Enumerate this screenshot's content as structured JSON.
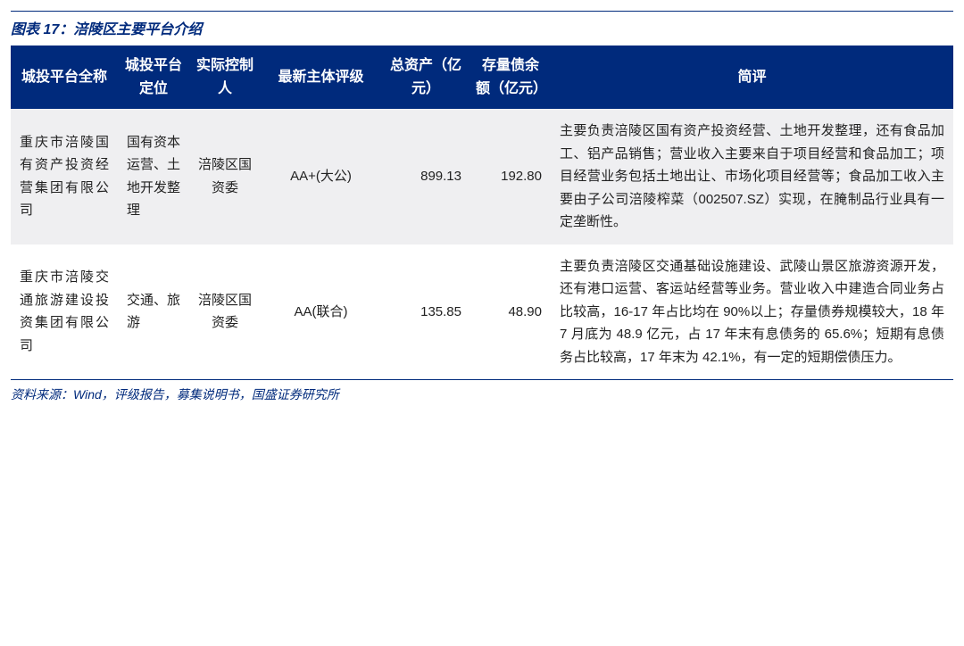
{
  "figure": {
    "label": "图表 17：",
    "title": "涪陵区主要平台介绍"
  },
  "table": {
    "columns": [
      "城投平台全称",
      "城投平台定位",
      "实际控制人",
      "最新主体评级",
      "总资产（亿元）",
      "存量债余额（亿元）",
      "简评"
    ],
    "rows": [
      {
        "name": "重庆市涪陵国有资产投资经营集团有限公司",
        "position": "国有资本运营、土地开发整理",
        "controller": "涪陵区国资委",
        "rating": "AA+(大公)",
        "assets": "899.13",
        "debt": "192.80",
        "comment": "主要负责涪陵区国有资产投资经营、土地开发整理，还有食品加工、铝产品销售；营业收入主要来自于项目经营和食品加工；项目经营业务包括土地出让、市场化项目经营等；食品加工收入主要由子公司涪陵榨菜（002507.SZ）实现，在腌制品行业具有一定垄断性。"
      },
      {
        "name": "重庆市涪陵交通旅游建设投资集团有限公司",
        "position": "交通、旅游",
        "controller": "涪陵区国资委",
        "rating": "AA(联合)",
        "assets": "135.85",
        "debt": "48.90",
        "comment": "主要负责涪陵区交通基础设施建设、武陵山景区旅游资源开发，还有港口运营、客运站经营等业务。营业收入中建造合同业务占比较高，16-17 年占比均在 90%以上；存量债券规模较大，18 年 7 月底为 48.9 亿元，占 17 年末有息债务的 65.6%；短期有息债务占比较高，17 年末为 42.1%，有一定的短期偿债压力。"
      }
    ]
  },
  "source": "资料来源：Wind，评级报告，募集说明书，国盛证券研究所",
  "colors": {
    "brand_blue": "#002a7c",
    "alt_row_bg": "#efeff1",
    "page_bg": "#ffffff",
    "body_text": "#222222"
  }
}
